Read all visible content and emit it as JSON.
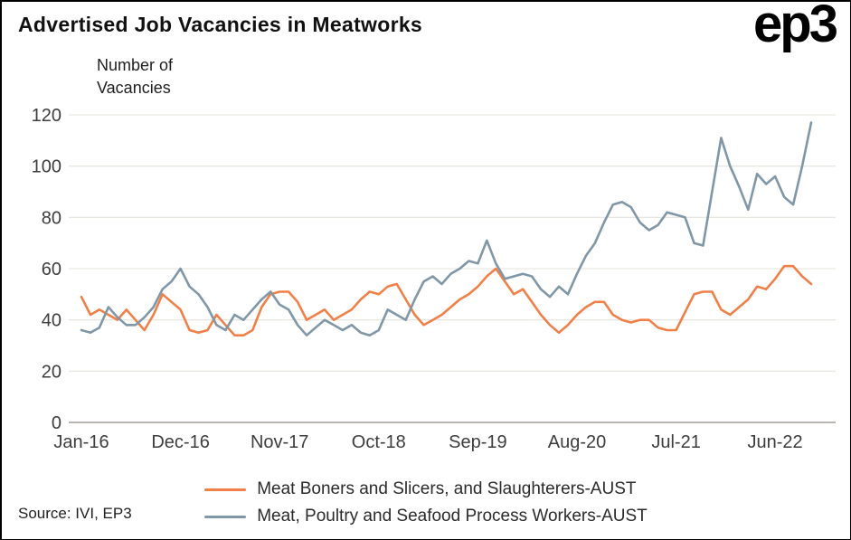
{
  "title": "Advertised Job Vacancies in Meatworks",
  "logo": {
    "ep": "ep",
    "three": "3"
  },
  "y_axis_label": {
    "line1": "Number of",
    "line2": "Vacancies"
  },
  "source": "Source: IVI, EP3",
  "chart_data": {
    "type": "line",
    "title": "Advertised Job Vacancies in Meatworks",
    "ylabel": "Number of Vacancies",
    "ylim": [
      0,
      120
    ],
    "y_ticks": [
      0,
      20,
      40,
      60,
      80,
      100,
      120
    ],
    "grid": "horizontal",
    "legend_position": "bottom",
    "x_tick_labels": [
      "Jan-16",
      "Dec-16",
      "Nov-17",
      "Oct-18",
      "Sep-19",
      "Aug-20",
      "Jul-21",
      "Jun-22"
    ],
    "x_ticks": [
      {
        "label": "Jan-16",
        "index": 0
      },
      {
        "label": "Dec-16",
        "index": 11
      },
      {
        "label": "Nov-17",
        "index": 22
      },
      {
        "label": "Oct-18",
        "index": 33
      },
      {
        "label": "Sep-19",
        "index": 44
      },
      {
        "label": "Aug-20",
        "index": 55
      },
      {
        "label": "Jul-21",
        "index": 66
      },
      {
        "label": "Jun-22",
        "index": 77
      }
    ],
    "x": [
      "Jan-16",
      "Feb-16",
      "Mar-16",
      "Apr-16",
      "May-16",
      "Jun-16",
      "Jul-16",
      "Aug-16",
      "Sep-16",
      "Oct-16",
      "Nov-16",
      "Dec-16",
      "Jan-17",
      "Feb-17",
      "Mar-17",
      "Apr-17",
      "May-17",
      "Jun-17",
      "Jul-17",
      "Aug-17",
      "Sep-17",
      "Oct-17",
      "Nov-17",
      "Dec-17",
      "Jan-18",
      "Feb-18",
      "Mar-18",
      "Apr-18",
      "May-18",
      "Jun-18",
      "Jul-18",
      "Aug-18",
      "Sep-18",
      "Oct-18",
      "Nov-18",
      "Dec-18",
      "Jan-19",
      "Feb-19",
      "Mar-19",
      "Apr-19",
      "May-19",
      "Jun-19",
      "Jul-19",
      "Aug-19",
      "Sep-19",
      "Oct-19",
      "Nov-19",
      "Dec-19",
      "Jan-20",
      "Feb-20",
      "Mar-20",
      "Apr-20",
      "May-20",
      "Jun-20",
      "Jul-20",
      "Aug-20",
      "Sep-20",
      "Oct-20",
      "Nov-20",
      "Dec-20",
      "Jan-21",
      "Feb-21",
      "Mar-21",
      "Apr-21",
      "May-21",
      "Jun-21",
      "Jul-21",
      "Aug-21",
      "Sep-21",
      "Oct-21",
      "Nov-21",
      "Dec-21",
      "Jan-22",
      "Feb-22",
      "Mar-22",
      "Apr-22",
      "May-22",
      "Jun-22",
      "Jul-22",
      "Aug-22",
      "Sep-22",
      "Oct-22"
    ],
    "series": [
      {
        "name": "Meat Boners and Slicers, and Slaughterers-AUST",
        "color": "#F08048",
        "values": [
          49,
          42,
          44,
          42,
          40,
          44,
          40,
          36,
          42,
          50,
          47,
          44,
          36,
          35,
          36,
          42,
          38,
          34,
          34,
          36,
          45,
          50,
          51,
          51,
          47,
          40,
          42,
          44,
          40,
          42,
          44,
          48,
          51,
          50,
          53,
          54,
          48,
          42,
          38,
          40,
          42,
          45,
          48,
          50,
          53,
          57,
          60,
          55,
          50,
          52,
          47,
          42,
          38,
          35,
          38,
          42,
          45,
          47,
          47,
          42,
          40,
          39,
          40,
          40,
          37,
          36,
          36,
          43,
          50,
          51,
          51,
          44,
          42,
          45,
          48,
          53,
          52,
          56,
          61,
          61,
          57,
          54
        ]
      },
      {
        "name": "Meat, Poultry and Seafood Process Workers-AUST",
        "color": "#8097A7",
        "values": [
          36,
          35,
          37,
          45,
          41,
          38,
          38,
          41,
          45,
          52,
          55,
          60,
          53,
          50,
          45,
          38,
          36,
          42,
          40,
          44,
          48,
          51,
          46,
          44,
          38,
          34,
          37,
          40,
          38,
          36,
          38,
          35,
          34,
          36,
          44,
          42,
          40,
          48,
          55,
          57,
          54,
          58,
          60,
          63,
          62,
          71,
          62,
          56,
          57,
          58,
          57,
          52,
          49,
          53,
          50,
          58,
          65,
          70,
          78,
          85,
          86,
          84,
          78,
          75,
          77,
          82,
          81,
          80,
          70,
          69,
          90,
          111,
          100,
          92,
          83,
          97,
          93,
          96,
          88,
          85,
          100,
          117
        ]
      }
    ]
  }
}
